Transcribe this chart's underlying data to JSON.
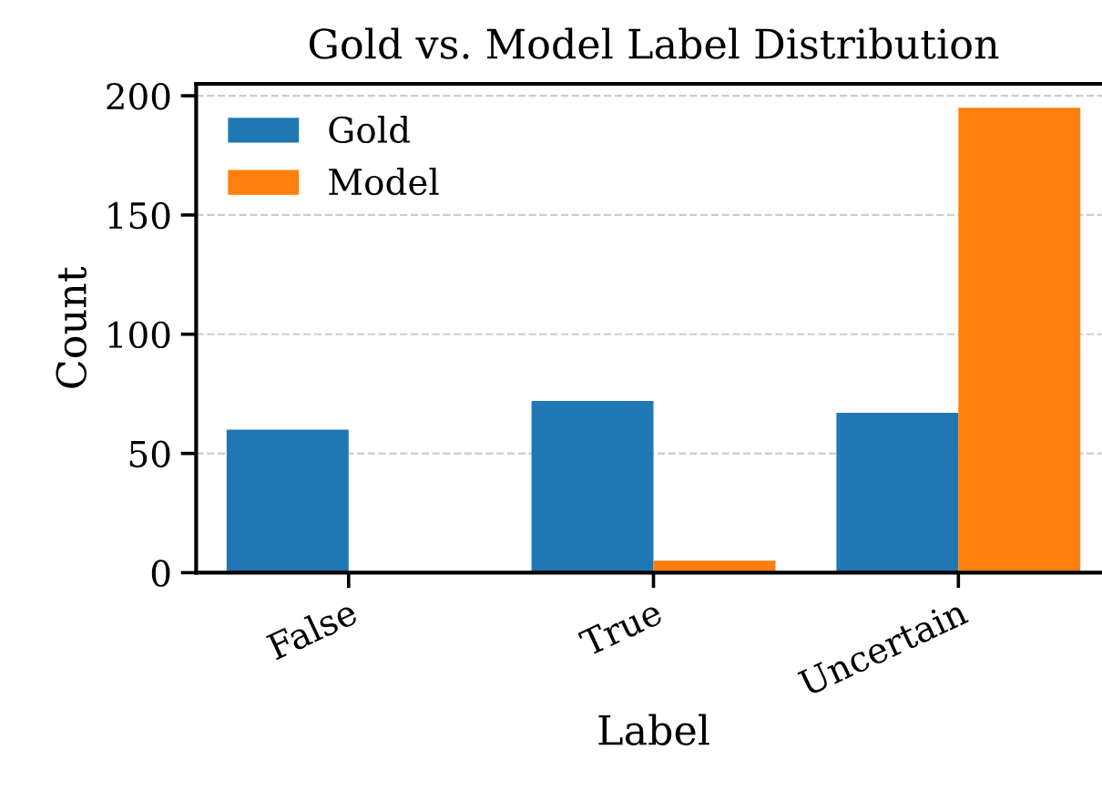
{
  "chart_data": {
    "type": "bar",
    "title": "Gold vs. Model Label Distribution",
    "xlabel": "Label",
    "ylabel": "Count",
    "categories": [
      "False",
      "True",
      "Uncertain"
    ],
    "series": [
      {
        "name": "Gold",
        "color": "#1f77b4",
        "values": [
          60,
          72,
          67
        ]
      },
      {
        "name": "Model",
        "color": "#ff7f0e",
        "values": [
          0,
          5,
          195
        ]
      }
    ],
    "ylim": [
      0,
      205
    ],
    "yticks": [
      0,
      50,
      100,
      150,
      200
    ],
    "grid": "y",
    "legend": "top left"
  }
}
